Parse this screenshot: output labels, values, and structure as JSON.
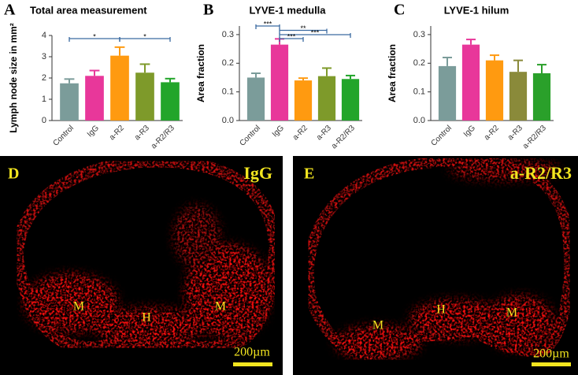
{
  "chart_data": [
    {
      "type": "bar",
      "panel": "A",
      "title": "Total area measurement",
      "y_label": "Lymph node size in mm²",
      "categories": [
        "Control",
        "IgG",
        "a-R2",
        "a-R3",
        "a-R2/R3"
      ],
      "values": [
        1.75,
        2.1,
        3.05,
        2.25,
        1.8
      ],
      "errors": [
        0.2,
        0.25,
        0.4,
        0.4,
        0.17
      ],
      "colors": [
        "#7b9c9a",
        "#e8379a",
        "#ff9a10",
        "#7e9a2a",
        "#22a52a"
      ],
      "ylim": [
        0,
        4
      ],
      "yticks": [
        0,
        1,
        2,
        3,
        4
      ],
      "brackets": [
        {
          "label": "*",
          "from": "Control",
          "to": "a-R2"
        },
        {
          "label": "*",
          "from": "a-R2",
          "to": "a-R2/R3"
        }
      ]
    },
    {
      "type": "bar",
      "panel": "B",
      "title": "LYVE-1 medulla",
      "y_label": "Area fraction",
      "categories": [
        "Control",
        "IgG",
        "a-R2",
        "a-R3",
        "a-R2/R3"
      ],
      "values": [
        0.15,
        0.265,
        0.14,
        0.155,
        0.145
      ],
      "errors": [
        0.015,
        0.02,
        0.008,
        0.028,
        0.012
      ],
      "colors": [
        "#7b9c9a",
        "#e8379a",
        "#ff9a10",
        "#7e9a2a",
        "#22a52a"
      ],
      "ylim": [
        0,
        0.33
      ],
      "yticks": [
        {
          "value": 0,
          "label": "0.0"
        },
        0.1,
        0.2,
        0.3
      ],
      "brackets": [
        {
          "label": "***",
          "from": "Control",
          "to": "IgG"
        },
        {
          "label": "**",
          "from": "IgG",
          "to": "a-R3"
        },
        {
          "label": "***",
          "from": "IgG",
          "to": "a-R2/R3"
        },
        {
          "label": "***",
          "from": "IgG",
          "to": "a-R2"
        }
      ]
    },
    {
      "type": "bar",
      "panel": "C",
      "title": "LYVE-1 hilum",
      "y_label": "Area fraction",
      "categories": [
        "Control",
        "IgG",
        "a-R2",
        "a-R3",
        "a-R2/R3"
      ],
      "values": [
        0.19,
        0.265,
        0.21,
        0.17,
        0.165
      ],
      "errors": [
        0.03,
        0.018,
        0.018,
        0.04,
        0.03
      ],
      "colors": [
        "#7b9c9a",
        "#e8379a",
        "#ff9a10",
        "#8a8a3a",
        "#2aa02a"
      ],
      "ylim": [
        0,
        0.33
      ],
      "yticks": [
        {
          "value": 0,
          "label": "0.0"
        },
        0.1,
        0.2,
        0.3
      ],
      "brackets": []
    }
  ],
  "images": [
    {
      "panel": "D",
      "label": "IgG",
      "regions": [
        "M",
        "H",
        "M"
      ],
      "scale": "200µm"
    },
    {
      "panel": "E",
      "label": "a-R2/R3",
      "regions": [
        "M",
        "H",
        "M"
      ],
      "scale": "200µm"
    }
  ]
}
